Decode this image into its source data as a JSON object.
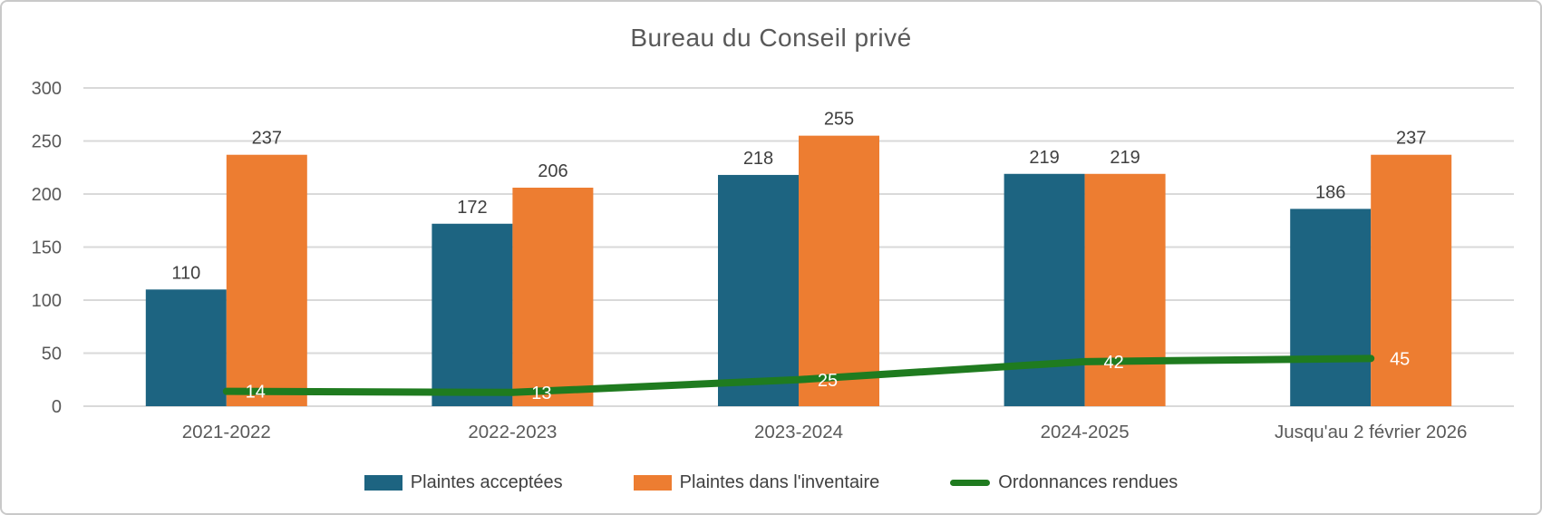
{
  "title": "Bureau du Conseil privé",
  "colors": {
    "background": "#ffffff",
    "frame_border": "#c9c9c9",
    "title_text": "#595959",
    "axis_text": "#595959",
    "grid_line": "#d9d9d9",
    "bar_label_text": "#3f3f3f",
    "line_label_text": "#ffffff"
  },
  "chart_data": {
    "type": "bar",
    "subtype": "grouped bars with overlaid line",
    "title": "Bureau du Conseil privé",
    "categories": [
      "2021-2022",
      "2022-2023",
      "2023-2024",
      "2024-2025",
      "Jusqu'au 2 février 2026"
    ],
    "series": [
      {
        "name": "Plaintes acceptées",
        "type": "bar",
        "color": "#1d6481",
        "values": [
          110,
          172,
          218,
          219,
          186
        ]
      },
      {
        "name": "Plaintes dans l'inventaire",
        "type": "bar",
        "color": "#ed7d31",
        "values": [
          237,
          206,
          255,
          219,
          237
        ]
      },
      {
        "name": "Ordonnances rendues",
        "type": "line",
        "color": "#1f7b1f",
        "values": [
          14,
          13,
          25,
          42,
          45
        ]
      }
    ],
    "xlabel": "",
    "ylabel": "",
    "ylim": [
      0,
      300
    ],
    "yticks": [
      0,
      50,
      100,
      150,
      200,
      250,
      300
    ],
    "grid": true,
    "data_labels": true,
    "legend_position": "bottom"
  }
}
